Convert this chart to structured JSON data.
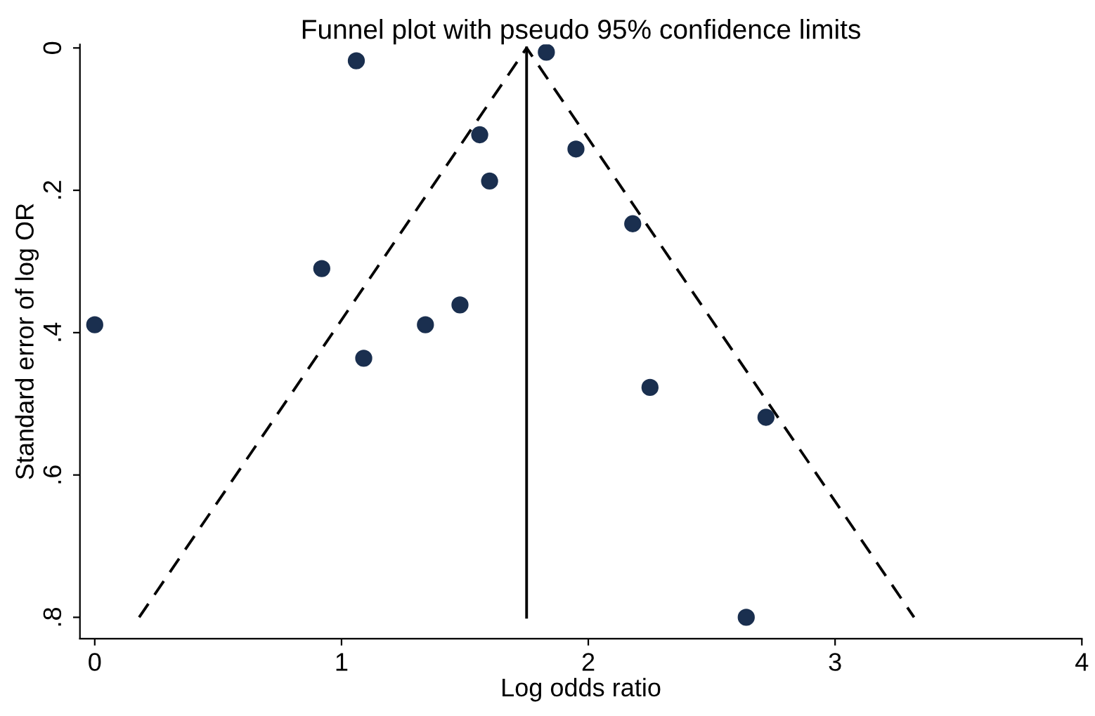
{
  "chart_data": {
    "type": "scatter",
    "title": "Funnel plot with pseudo 95% confidence limits",
    "xlabel": "Log odds ratio",
    "ylabel": "Standard error of log OR",
    "series": [
      {
        "color": "#1a2f4f",
        "marker": "circle",
        "x": [
          1.06,
          1.83,
          1.56,
          1.6,
          1.95,
          2.18,
          0.92,
          1.48,
          1.34,
          0.0,
          1.09,
          2.25,
          2.72,
          2.64
        ],
        "values": [
          0.018,
          0.006,
          0.122,
          0.187,
          0.142,
          0.247,
          0.31,
          0.361,
          0.389,
          0.389,
          0.436,
          0.477,
          0.519,
          0.8
        ]
      },
      {
        "type": "line",
        "color": "#000000",
        "line_style": "solid",
        "x": [
          1.75,
          1.75
        ],
        "values": [
          0,
          0.8
        ]
      },
      {
        "type": "line",
        "color": "#000000",
        "line_style": "dashed",
        "x": [
          0.18,
          1.75,
          3.32
        ],
        "values": [
          0.8,
          0,
          0.8
        ]
      }
    ],
    "xlim": [
      -0.06,
      4.0
    ],
    "ylim": [
      0.83,
      -0.005
    ],
    "xticks": [
      0,
      1,
      2,
      3,
      4
    ],
    "yticks": [
      {
        "value": 0,
        "label": "0"
      },
      {
        "value": 0.2,
        "label": ".2"
      },
      {
        "value": 0.4,
        "label": ".4"
      },
      {
        "value": 0.6,
        "label": ".6"
      },
      {
        "value": 0.8,
        "label": ".8"
      }
    ],
    "grid": false,
    "legend": false
  }
}
